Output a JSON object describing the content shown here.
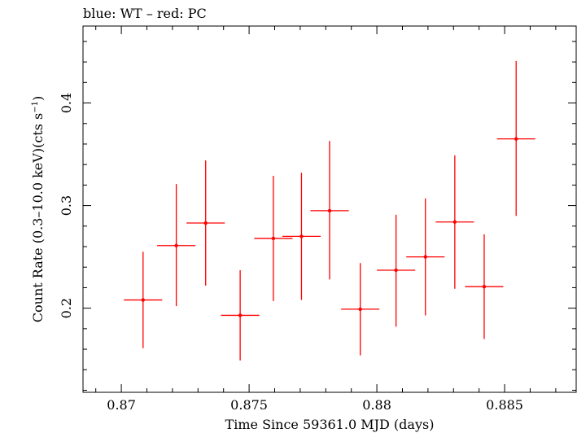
{
  "chart_data": {
    "type": "scatter",
    "title": "blue: WT – red: PC",
    "xlabel": "Time Since 59361.0 MJD (days)",
    "ylabel": "Count Rate (0.3–10.0 keV)(cts s",
    "ylabel_sup": "−1",
    "ylabel_close": ")",
    "xlim": [
      0.8685,
      0.8878
    ],
    "ylim": [
      0.118,
      0.475
    ],
    "x_ticks": [
      0.87,
      0.875,
      0.88,
      0.885
    ],
    "x_tick_labels": [
      "0.87",
      "0.875",
      "0.88",
      "0.885"
    ],
    "y_ticks": [
      0.2,
      0.3,
      0.4
    ],
    "y_tick_labels": [
      "0.2",
      "0.3",
      "0.4"
    ],
    "grid": false,
    "colors": {
      "PC": "#ff0000",
      "WT": "#0000ff",
      "axes": "#000000"
    },
    "series": [
      {
        "name": "PC",
        "color": "#ff0000",
        "points": [
          {
            "x": 0.87085,
            "xerr": 0.00075,
            "y": 0.208,
            "ylo": 0.161,
            "yhi": 0.255
          },
          {
            "x": 0.87215,
            "xerr": 0.00075,
            "y": 0.261,
            "ylo": 0.202,
            "yhi": 0.321
          },
          {
            "x": 0.8733,
            "xerr": 0.00075,
            "y": 0.283,
            "ylo": 0.222,
            "yhi": 0.344
          },
          {
            "x": 0.87465,
            "xerr": 0.00075,
            "y": 0.193,
            "ylo": 0.149,
            "yhi": 0.237
          },
          {
            "x": 0.87595,
            "xerr": 0.00075,
            "y": 0.268,
            "ylo": 0.207,
            "yhi": 0.329
          },
          {
            "x": 0.87705,
            "xerr": 0.00075,
            "y": 0.27,
            "ylo": 0.208,
            "yhi": 0.332
          },
          {
            "x": 0.87815,
            "xerr": 0.00075,
            "y": 0.295,
            "ylo": 0.228,
            "yhi": 0.363
          },
          {
            "x": 0.87935,
            "xerr": 0.00075,
            "y": 0.199,
            "ylo": 0.154,
            "yhi": 0.244
          },
          {
            "x": 0.88075,
            "xerr": 0.00075,
            "y": 0.237,
            "ylo": 0.182,
            "yhi": 0.291
          },
          {
            "x": 0.8819,
            "xerr": 0.00075,
            "y": 0.25,
            "ylo": 0.193,
            "yhi": 0.307
          },
          {
            "x": 0.88305,
            "xerr": 0.00075,
            "y": 0.284,
            "ylo": 0.219,
            "yhi": 0.349
          },
          {
            "x": 0.8842,
            "xerr": 0.00075,
            "y": 0.221,
            "ylo": 0.17,
            "yhi": 0.272
          },
          {
            "x": 0.88545,
            "xerr": 0.00075,
            "y": 0.365,
            "ylo": 0.29,
            "yhi": 0.441
          }
        ]
      }
    ]
  }
}
